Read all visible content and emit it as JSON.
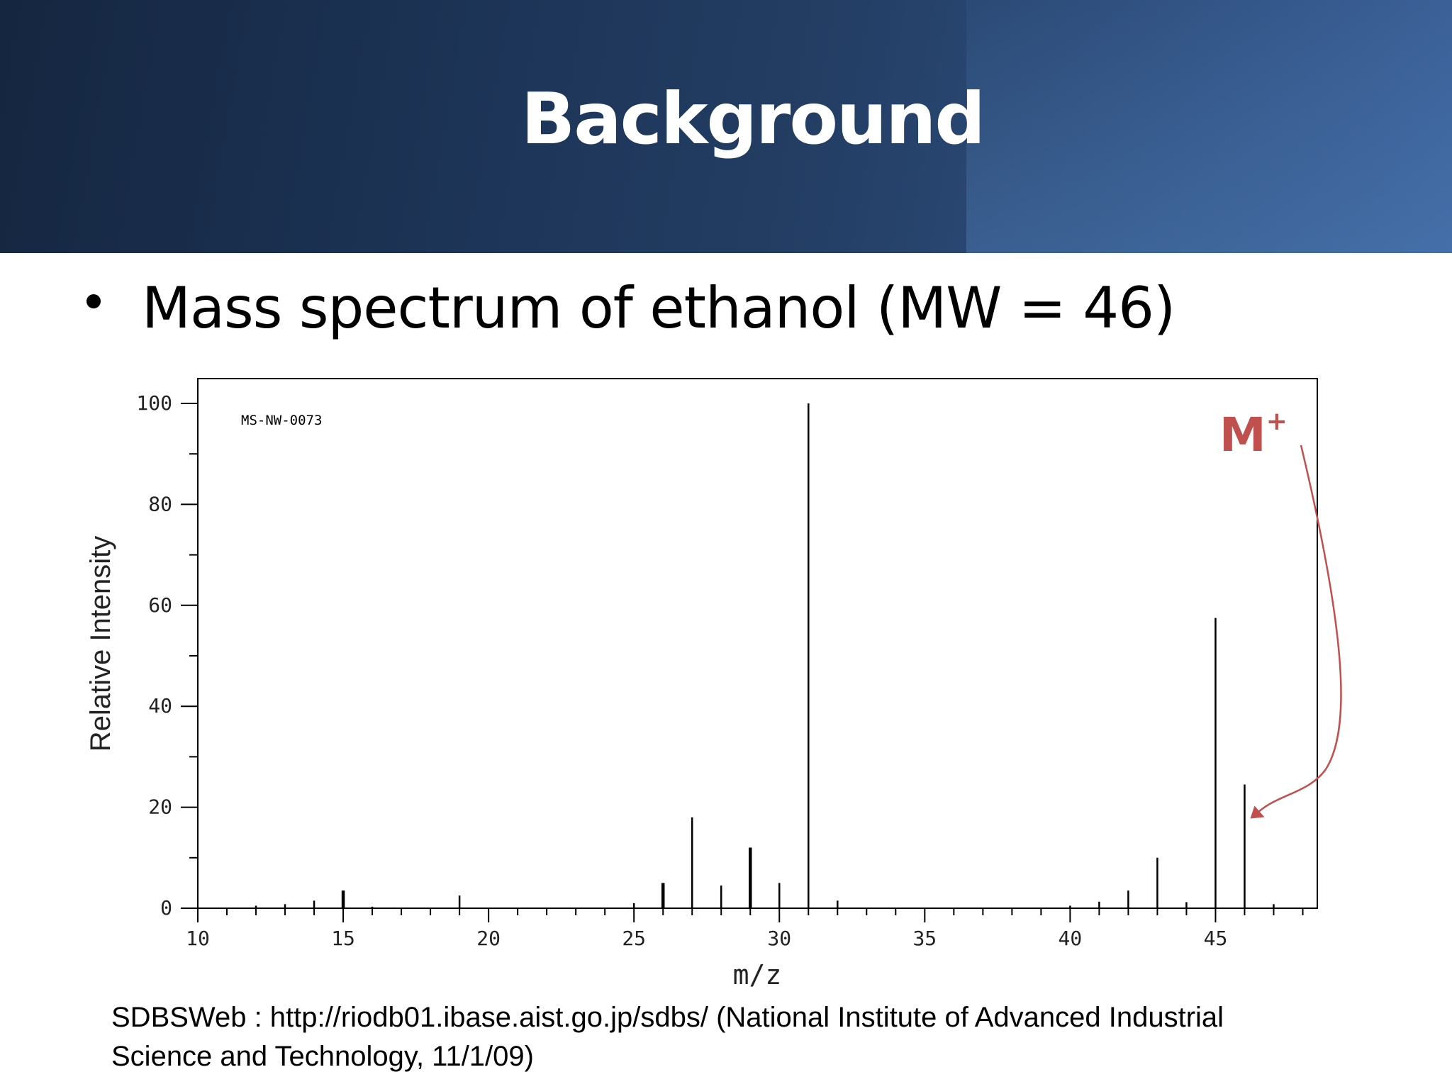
{
  "slide": {
    "title": "Background",
    "bullet": "Mass spectrum of ethanol (MW = 46)",
    "citation_line1": "SDBSWeb : http://riodb01.ibase.aist.go.jp/sdbs/ (National Institute of Advanced Industrial",
    "citation_line2": "Science and Technology, 11/1/09)"
  },
  "colors": {
    "header_dark": "#152640",
    "header_light": "#3a6098",
    "annotation": "#c0504d",
    "bars": "#000000"
  },
  "chart_data": {
    "type": "bar",
    "spectrum_id": "MS-NW-0073",
    "xlabel": "m/z",
    "ylabel": "Relative Intensity",
    "xlim": [
      10,
      48.5
    ],
    "ylim": [
      0,
      100
    ],
    "xticks": [
      10,
      15,
      20,
      25,
      30,
      35,
      40,
      45
    ],
    "yticks": [
      0,
      20,
      40,
      60,
      80,
      100
    ],
    "grid": false,
    "annotation": {
      "text": "M",
      "superscript": "+",
      "target_mz": 46
    },
    "x": [
      12,
      13,
      14,
      15,
      16,
      19,
      25,
      26,
      27,
      28,
      29,
      30,
      31,
      32,
      40,
      41,
      42,
      43,
      44,
      45,
      46,
      47
    ],
    "values": [
      0.5,
      0.8,
      1.5,
      3.5,
      0.3,
      2.5,
      1.0,
      5.0,
      18,
      4.5,
      12,
      5.0,
      100,
      1.5,
      0.5,
      1.3,
      3.5,
      10,
      1.2,
      57.5,
      24.5,
      0.8
    ],
    "widths": [
      1,
      1,
      1,
      2,
      1,
      1,
      1,
      2,
      1,
      1,
      2,
      1,
      1,
      1,
      1,
      1,
      1,
      1,
      1,
      1,
      1,
      1
    ]
  }
}
